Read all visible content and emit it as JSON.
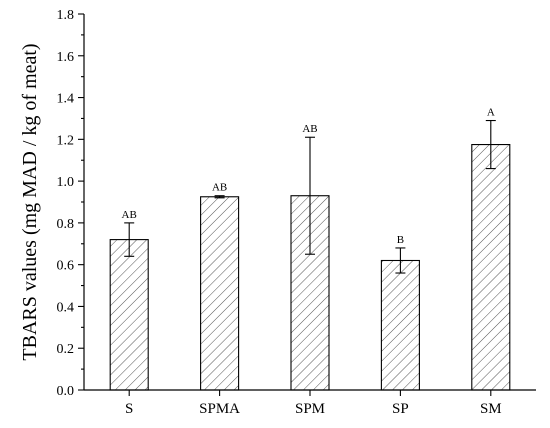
{
  "chart_data": {
    "type": "bar",
    "categories": [
      "S",
      "SPMA",
      "SPM",
      "SP",
      "SM"
    ],
    "values": [
      0.72,
      0.925,
      0.93,
      0.62,
      1.175
    ],
    "errors": [
      0.08,
      0.005,
      0.28,
      0.06,
      0.115
    ],
    "annotations": [
      "AB",
      "AB",
      "AB",
      "B",
      "A"
    ],
    "ylabel": "TBARS values (mg MAD / kg of meat)",
    "xlabel": "",
    "ylim": [
      0,
      1.8
    ],
    "yticks": [
      "0.0",
      "0.2",
      "0.4",
      "0.6",
      "0.8",
      "1.0",
      "1.2",
      "1.4",
      "1.6",
      "1.8"
    ],
    "fill": "hatched",
    "grid": false
  }
}
